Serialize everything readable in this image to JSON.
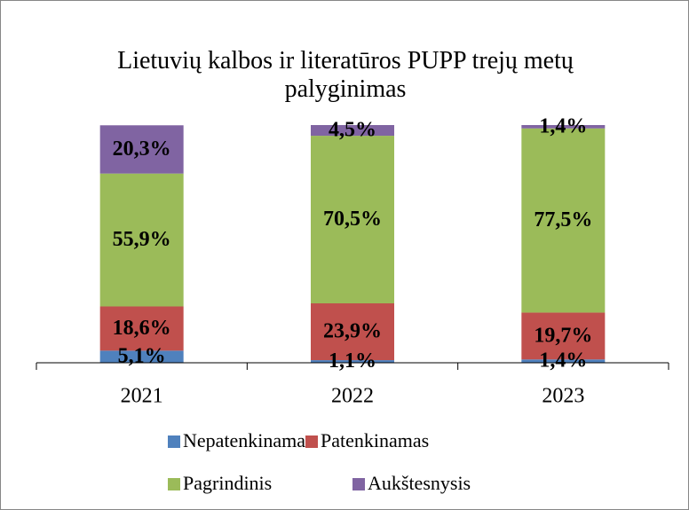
{
  "chart_data": {
    "type": "stacked_bar",
    "title": "Lietuvių kalbos ir literatūros PUPP trejų metų palyginimas",
    "categories": [
      "2021",
      "2022",
      "2023"
    ],
    "ylim": [
      0,
      100
    ],
    "series": [
      {
        "name": "Nepatenkinamas",
        "color": "#4f81bd",
        "values": [
          5.1,
          1.1,
          1.4
        ],
        "value_labels": [
          "5,1%",
          "1,1%",
          "1,4%"
        ]
      },
      {
        "name": "Patenkinamas",
        "color": "#c0504d",
        "values": [
          18.6,
          23.9,
          19.7
        ],
        "value_labels": [
          "18,6%",
          "23,9%",
          "19,7%"
        ]
      },
      {
        "name": "Pagrindinis",
        "color": "#9bbb59",
        "values": [
          55.9,
          70.5,
          77.5
        ],
        "value_labels": [
          "55,9%",
          "70,5%",
          "77,5%"
        ]
      },
      {
        "name": "Aukštesnysis",
        "color": "#8064a2",
        "values": [
          20.3,
          4.5,
          1.4
        ],
        "value_labels": [
          "20,3%",
          "4,5%",
          "1,4%"
        ]
      }
    ]
  }
}
